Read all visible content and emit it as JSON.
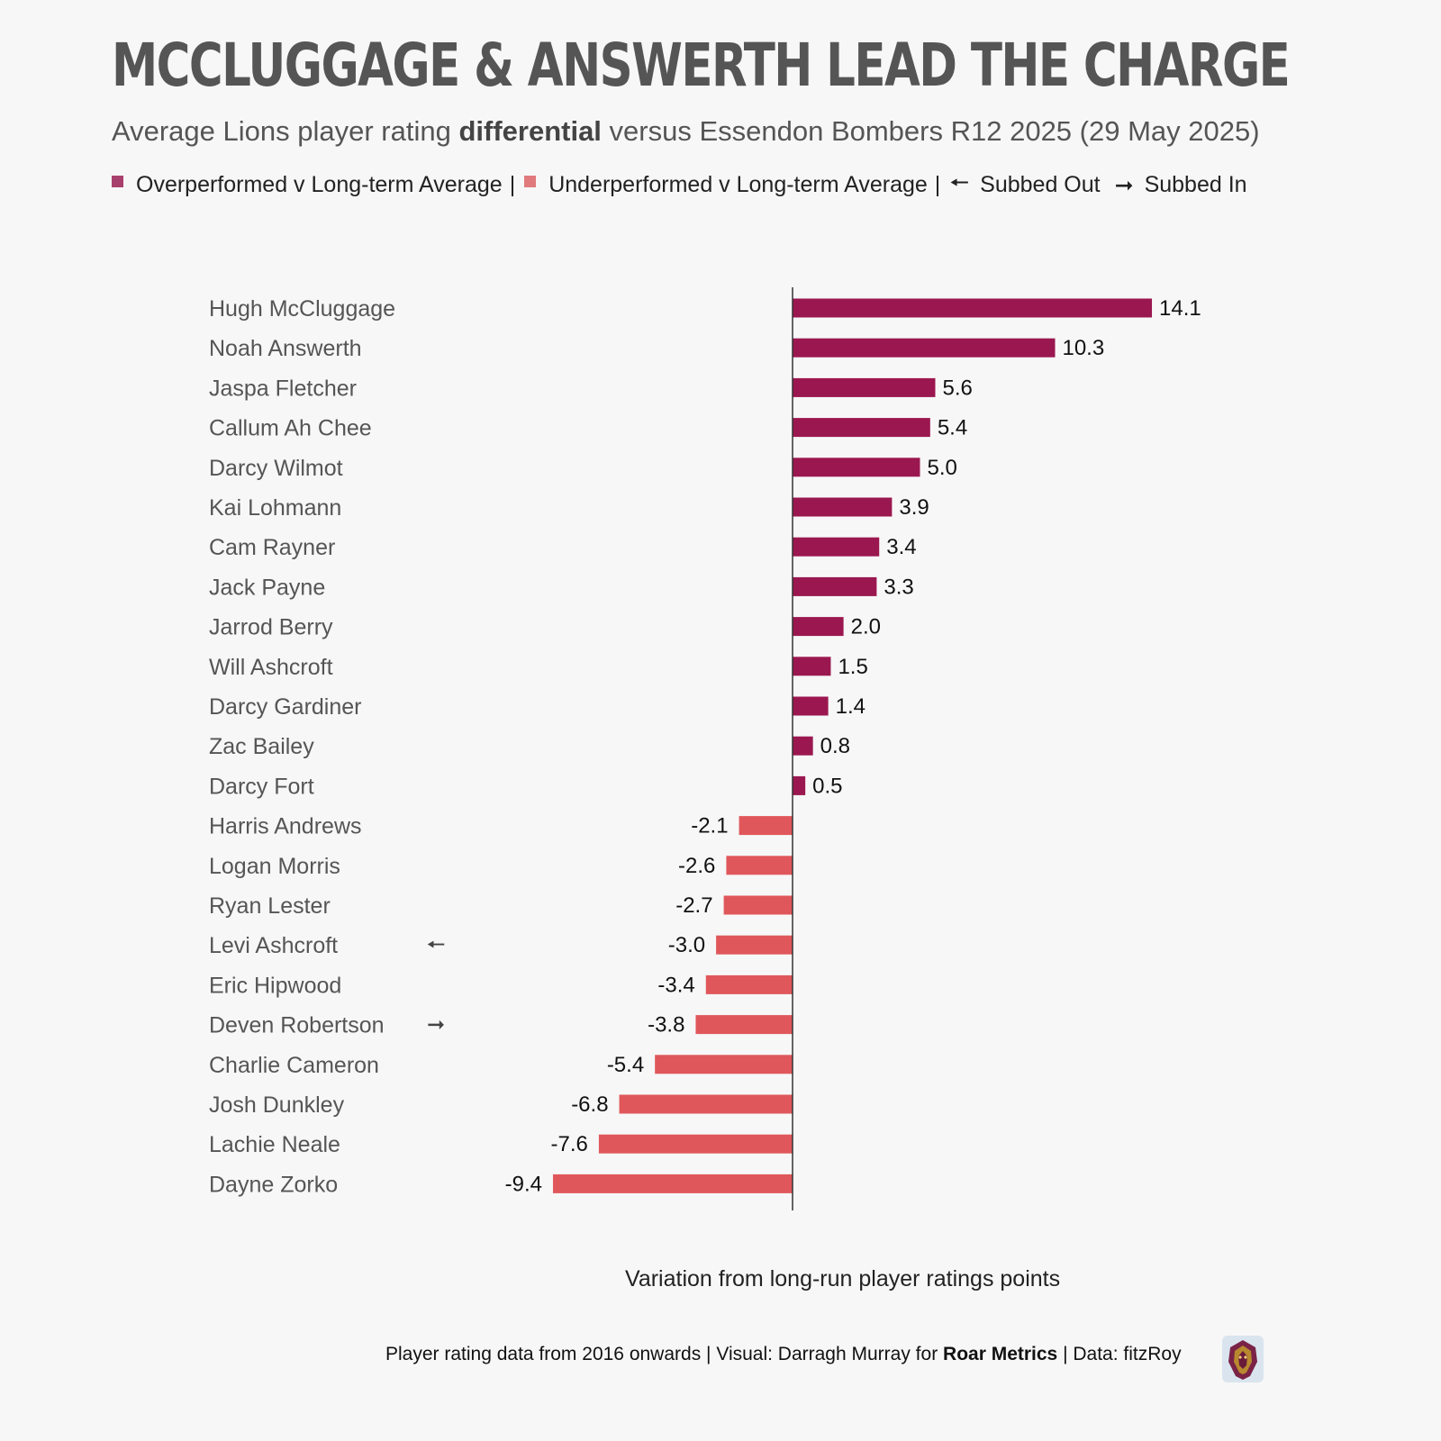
{
  "title": "MCCLUGGAGE & ANSWERTH LEAD THE CHARGE",
  "subtitle": {
    "before": "Average Lions player rating ",
    "bold": "differential",
    "after": " versus Essendon Bombers R12 2025 (29 May 2025)"
  },
  "legend": {
    "over_label": "Overperformed v Long-term Average",
    "under_label": "Underperformed v Long-term Average",
    "separator": "|",
    "subbed_out_arrow": "🠔",
    "subbed_out_label": "Subbed Out",
    "subbed_in_arrow": "➞",
    "subbed_in_label": "Subbed In"
  },
  "colors": {
    "over": "#9b1750",
    "under": "#e0575b",
    "legend_over": "#a8406c",
    "legend_under": "#e07a7c",
    "label": "#555555",
    "value": "#111111",
    "axis": "#333333"
  },
  "chart_data": {
    "type": "bar",
    "orientation": "horizontal",
    "categories": [
      "Hugh McCluggage",
      "Noah Answerth",
      "Jaspa Fletcher",
      "Callum Ah Chee",
      "Darcy Wilmot",
      "Kai Lohmann",
      "Cam Rayner",
      "Jack Payne",
      "Jarrod Berry",
      "Will Ashcroft",
      "Darcy Gardiner",
      "Zac Bailey",
      "Darcy Fort",
      "Harris Andrews",
      "Logan Morris",
      "Ryan Lester",
      "Levi Ashcroft",
      "Eric Hipwood",
      "Deven Robertson",
      "Charlie Cameron",
      "Josh Dunkley",
      "Lachie Neale",
      "Dayne Zorko"
    ],
    "values": [
      14.1,
      10.3,
      5.6,
      5.4,
      5.0,
      3.9,
      3.4,
      3.3,
      2.0,
      1.5,
      1.4,
      0.8,
      0.5,
      -2.1,
      -2.6,
      -2.7,
      -3.0,
      -3.4,
      -3.8,
      -5.4,
      -6.8,
      -7.6,
      -9.4
    ],
    "value_labels": [
      "14.1",
      "10.3",
      "5.6",
      "5.4",
      "5.0",
      "3.9",
      "3.4",
      "3.3",
      "2.0",
      "1.5",
      "1.4",
      "0.8",
      "0.5",
      "-2.1",
      "-2.6",
      "-2.7",
      "-3.0",
      "-3.4",
      "-3.8",
      "-5.4",
      "-6.8",
      "-7.6",
      "-9.4"
    ],
    "substitutions": [
      "",
      "",
      "",
      "",
      "",
      "",
      "",
      "",
      "",
      "",
      "",
      "",
      "",
      "",
      "",
      "",
      "🠔",
      "",
      "➞",
      "",
      "",
      "",
      ""
    ],
    "xlabel": "Variation from long-run player ratings points",
    "xlim": [
      -12.8,
      15.4
    ]
  },
  "footer": {
    "before": "Player rating data from 2016 onwards | Visual: Darragh Murray for ",
    "bold": "Roar Metrics",
    "after": " | Data: fitzRoy"
  }
}
